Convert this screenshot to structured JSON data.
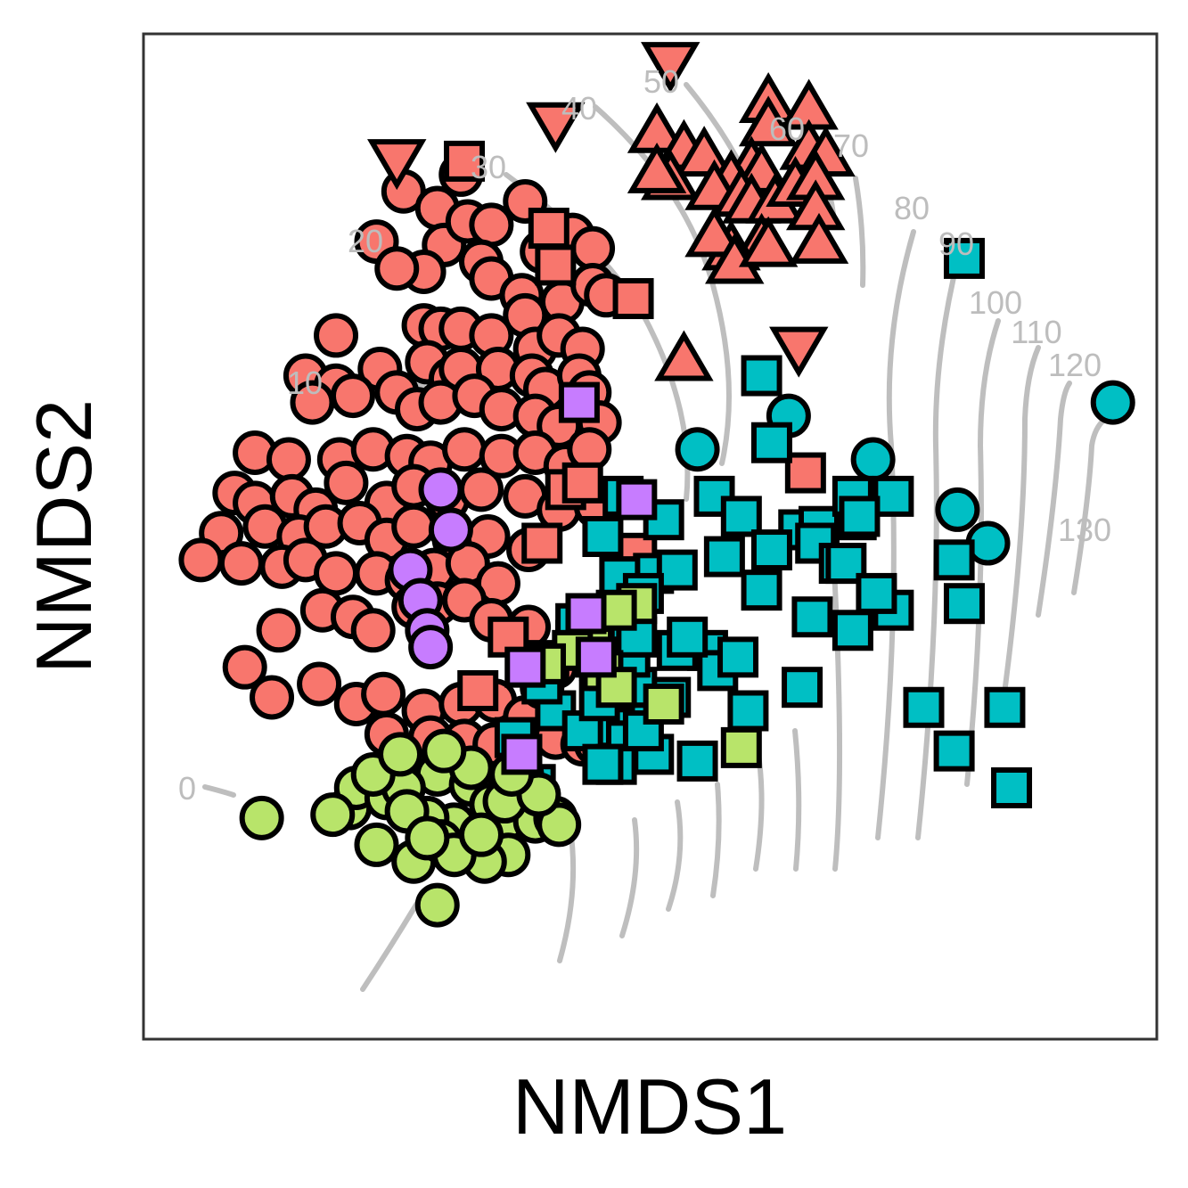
{
  "chart_data": {
    "type": "scatter",
    "title": "",
    "xlabel": "NMDS1",
    "ylabel": "NMDS2",
    "xlim": [
      -1.5,
      1.5
    ],
    "ylim": [
      -1.5,
      1.5
    ],
    "grid": false,
    "legend": "none",
    "overlay": "ordisurf contour lines",
    "contour_levels": [
      0,
      10,
      20,
      30,
      40,
      50,
      60,
      70,
      80,
      90,
      100,
      110,
      120,
      130
    ],
    "colors": {
      "red": "#F8766D",
      "cyan": "#00BFC4",
      "green": "#B8E46A",
      "purple": "#C77CFF",
      "contour": "#BEBEBE",
      "outline": "#000000"
    },
    "series": [
      {
        "color": "red",
        "shape": "circle",
        "points": [
          [
            -0.73,
            1.03
          ],
          [
            -0.56,
            1.08
          ],
          [
            -0.81,
            0.88
          ],
          [
            -0.63,
            0.98
          ],
          [
            -0.37,
            1.0
          ],
          [
            -0.61,
            0.87
          ],
          [
            -0.54,
            0.94
          ],
          [
            -0.47,
            0.93
          ],
          [
            -0.32,
            0.85
          ],
          [
            -0.23,
            0.9
          ],
          [
            -0.17,
            0.86
          ],
          [
            -0.67,
            0.79
          ],
          [
            -0.75,
            0.8
          ],
          [
            -0.5,
            0.82
          ],
          [
            -0.47,
            0.77
          ],
          [
            -0.38,
            0.72
          ],
          [
            -0.26,
            0.7
          ],
          [
            -0.17,
            0.75
          ],
          [
            -0.13,
            0.72
          ],
          [
            -0.93,
            0.6
          ],
          [
            -0.67,
            0.63
          ],
          [
            -0.62,
            0.62
          ],
          [
            -0.56,
            0.62
          ],
          [
            -0.47,
            0.6
          ],
          [
            -0.37,
            0.66
          ],
          [
            -0.34,
            0.56
          ],
          [
            -0.27,
            0.6
          ],
          [
            -0.2,
            0.56
          ],
          [
            -1.02,
            0.48
          ],
          [
            -0.93,
            0.45
          ],
          [
            -0.8,
            0.5
          ],
          [
            -0.66,
            0.52
          ],
          [
            -0.59,
            0.47
          ],
          [
            -0.56,
            0.5
          ],
          [
            -0.45,
            0.5
          ],
          [
            -0.35,
            0.48
          ],
          [
            -0.31,
            0.44
          ],
          [
            -0.21,
            0.48
          ],
          [
            -0.18,
            0.43
          ],
          [
            -1.0,
            0.4
          ],
          [
            -0.88,
            0.42
          ],
          [
            -0.75,
            0.43
          ],
          [
            -0.69,
            0.38
          ],
          [
            -0.62,
            0.4
          ],
          [
            -0.52,
            0.42
          ],
          [
            -0.44,
            0.38
          ],
          [
            -0.34,
            0.36
          ],
          [
            -0.27,
            0.33
          ],
          [
            -0.15,
            0.34
          ],
          [
            -1.17,
            0.25
          ],
          [
            -1.07,
            0.23
          ],
          [
            -0.92,
            0.23
          ],
          [
            -0.82,
            0.26
          ],
          [
            -0.72,
            0.24
          ],
          [
            -0.65,
            0.22
          ],
          [
            -0.55,
            0.26
          ],
          [
            -0.44,
            0.24
          ],
          [
            -0.34,
            0.25
          ],
          [
            -0.25,
            0.21
          ],
          [
            -0.18,
            0.26
          ],
          [
            -1.23,
            0.13
          ],
          [
            -1.17,
            0.1
          ],
          [
            -1.06,
            0.12
          ],
          [
            -0.99,
            0.08
          ],
          [
            -0.9,
            0.16
          ],
          [
            -0.78,
            0.1
          ],
          [
            -0.7,
            0.15
          ],
          [
            -0.6,
            0.11
          ],
          [
            -0.5,
            0.14
          ],
          [
            -0.37,
            0.12
          ],
          [
            -0.27,
            0.08
          ],
          [
            -0.16,
            0.09
          ],
          [
            -1.27,
            0.01
          ],
          [
            -1.14,
            0.03
          ],
          [
            -1.04,
            -0.0
          ],
          [
            -0.96,
            0.03
          ],
          [
            -0.86,
            0.04
          ],
          [
            -0.78,
            -0.01
          ],
          [
            -0.7,
            0.03
          ],
          [
            -0.58,
            -0.01
          ],
          [
            -0.48,
            0.0
          ],
          [
            -0.36,
            -0.04
          ],
          [
            -1.33,
            -0.07
          ],
          [
            -1.21,
            -0.08
          ],
          [
            -1.09,
            -0.09
          ],
          [
            -1.02,
            -0.07
          ],
          [
            -0.93,
            -0.11
          ],
          [
            -0.81,
            -0.11
          ],
          [
            -0.72,
            -0.13
          ],
          [
            -0.64,
            -0.1
          ],
          [
            -0.54,
            -0.08
          ],
          [
            -0.45,
            -0.14
          ],
          [
            -1.1,
            -0.28
          ],
          [
            -0.97,
            -0.22
          ],
          [
            -0.88,
            -0.24
          ],
          [
            -0.82,
            -0.28
          ],
          [
            -0.7,
            -0.21
          ],
          [
            -0.63,
            -0.2
          ],
          [
            -0.55,
            -0.19
          ],
          [
            -0.47,
            -0.25
          ],
          [
            -1.12,
            -0.48
          ],
          [
            -0.98,
            -0.44
          ],
          [
            -0.87,
            -0.5
          ],
          [
            -0.79,
            -0.47
          ],
          [
            -0.67,
            -0.52
          ],
          [
            -0.56,
            -0.5
          ],
          [
            -0.46,
            -0.49
          ],
          [
            -0.37,
            -0.54
          ],
          [
            -0.32,
            -0.45
          ],
          [
            -0.28,
            -0.39
          ],
          [
            -0.12,
            -0.48
          ],
          [
            -0.78,
            -0.59
          ],
          [
            -0.65,
            -0.6
          ],
          [
            -0.55,
            -0.61
          ],
          [
            -0.46,
            -0.62
          ],
          [
            -0.28,
            -0.6
          ],
          [
            -1.2,
            -0.39
          ],
          [
            -0.36,
            -0.27
          ],
          [
            -0.2,
            -0.62
          ],
          [
            -0.16,
            -0.62
          ]
        ]
      },
      {
        "color": "red",
        "shape": "square",
        "points": [
          [
            -0.55,
            1.12
          ],
          [
            -0.3,
            0.92
          ],
          [
            -0.28,
            0.81
          ],
          [
            -0.05,
            0.71
          ],
          [
            0.46,
            0.19
          ],
          [
            -0.25,
            0.14
          ],
          [
            -0.2,
            0.16
          ],
          [
            -0.32,
            -0.02
          ],
          [
            -0.04,
            -0.05
          ],
          [
            -0.22,
            -0.31
          ],
          [
            -0.42,
            -0.3
          ],
          [
            -0.51,
            -0.46
          ]
        ]
      },
      {
        "color": "red",
        "shape": "triangle-up",
        "points": [
          [
            0.02,
            1.2
          ],
          [
            0.1,
            1.15
          ],
          [
            0.16,
            1.13
          ],
          [
            0.06,
            1.06
          ],
          [
            0.02,
            1.08
          ],
          [
            0.35,
            1.29
          ],
          [
            0.47,
            1.27
          ],
          [
            0.35,
            1.22
          ],
          [
            0.47,
            1.15
          ],
          [
            0.52,
            1.13
          ],
          [
            0.3,
            1.1
          ],
          [
            0.33,
            1.08
          ],
          [
            0.24,
            1.06
          ],
          [
            0.19,
            1.03
          ],
          [
            0.27,
            1.01
          ],
          [
            0.3,
            0.99
          ],
          [
            0.37,
            0.99
          ],
          [
            0.43,
            1.04
          ],
          [
            0.49,
            1.06
          ],
          [
            0.49,
            0.97
          ],
          [
            0.5,
            0.87
          ],
          [
            0.33,
            0.87
          ],
          [
            0.24,
            0.85
          ],
          [
            0.19,
            0.89
          ],
          [
            0.25,
            0.81
          ],
          [
            0.35,
            0.86
          ],
          [
            0.1,
            0.52
          ]
        ]
      },
      {
        "color": "red",
        "shape": "triangle-down",
        "points": [
          [
            -0.75,
            1.13
          ],
          [
            -0.28,
            1.24
          ],
          [
            0.06,
            1.42
          ],
          [
            0.44,
            0.57
          ]
        ]
      },
      {
        "color": "cyan",
        "shape": "circle",
        "points": [
          [
            0.41,
            0.36
          ],
          [
            0.14,
            0.26
          ],
          [
            0.66,
            0.23
          ],
          [
            0.91,
            0.08
          ],
          [
            1.0,
            -0.02
          ],
          [
            1.37,
            0.4
          ]
        ]
      },
      {
        "color": "cyan",
        "shape": "square",
        "points": [
          [
            0.93,
            0.83
          ],
          [
            0.33,
            0.48
          ],
          [
            0.36,
            0.28
          ],
          [
            -0.08,
            0.12
          ],
          [
            0.19,
            0.12
          ],
          [
            0.27,
            0.06
          ],
          [
            0.04,
            0.05
          ],
          [
            0.44,
            0.02
          ],
          [
            0.5,
            0.03
          ],
          [
            0.61,
            0.05
          ],
          [
            -0.14,
            -0.0
          ],
          [
            0.01,
            -0.11
          ],
          [
            0.08,
            -0.1
          ],
          [
            0.49,
            -0.02
          ],
          [
            0.56,
            -0.08
          ],
          [
            0.9,
            -0.07
          ],
          [
            -0.09,
            -0.12
          ],
          [
            -0.02,
            -0.17
          ],
          [
            -0.22,
            -0.26
          ],
          [
            0.33,
            -0.16
          ],
          [
            0.72,
            -0.22
          ],
          [
            0.93,
            -0.2
          ],
          [
            0.17,
            -0.34
          ],
          [
            0.2,
            -0.4
          ],
          [
            0.45,
            -0.45
          ],
          [
            -0.08,
            -0.44
          ],
          [
            0.06,
            -0.48
          ],
          [
            0.29,
            -0.52
          ],
          [
            -0.28,
            -0.52
          ],
          [
            0.81,
            -0.51
          ],
          [
            0.9,
            -0.64
          ],
          [
            1.07,
            -0.75
          ],
          [
            0.14,
            -0.67
          ],
          [
            1.05,
            -0.51
          ],
          [
            -0.06,
            -0.26
          ],
          [
            0.0,
            -0.5
          ],
          [
            -0.3,
            -0.37
          ],
          [
            -0.11,
            -0.57
          ],
          [
            0.08,
            -0.34
          ],
          [
            0.11,
            -0.3
          ],
          [
            -0.07,
            -0.61
          ],
          [
            0.01,
            -0.65
          ],
          [
            -0.2,
            -0.58
          ],
          [
            -0.1,
            -0.68
          ],
          [
            -0.02,
            -0.58
          ],
          [
            -0.34,
            -0.74
          ],
          [
            0.72,
            0.12
          ],
          [
            0.6,
            0.12
          ],
          [
            0.58,
            -0.08
          ],
          [
            -0.4,
            -0.6
          ],
          [
            -0.15,
            -0.49
          ],
          [
            -0.04,
            -0.45
          ],
          [
            -0.12,
            -0.4
          ],
          [
            -0.06,
            -0.36
          ],
          [
            0.6,
            -0.28
          ],
          [
            0.26,
            -0.36
          ],
          [
            -0.32,
            -0.44
          ],
          [
            0.48,
            -0.24
          ],
          [
            0.36,
            -0.04
          ],
          [
            0.67,
            -0.17
          ],
          [
            0.62,
            0.06
          ],
          [
            -0.14,
            -0.68
          ],
          [
            0.22,
            -0.06
          ],
          [
            -0.04,
            -0.3
          ]
        ]
      },
      {
        "color": "green",
        "shape": "circle",
        "points": [
          [
            -1.15,
            -0.84
          ],
          [
            -0.89,
            -0.81
          ],
          [
            -0.87,
            -0.75
          ],
          [
            -0.78,
            -0.78
          ],
          [
            -0.63,
            -0.71
          ],
          [
            -0.58,
            -0.86
          ],
          [
            -0.53,
            -0.74
          ],
          [
            -0.47,
            -0.8
          ],
          [
            -0.42,
            -0.84
          ],
          [
            -0.38,
            -0.71
          ],
          [
            -0.34,
            -0.85
          ],
          [
            -0.42,
            -0.95
          ],
          [
            -0.49,
            -0.97
          ],
          [
            -0.7,
            -0.97
          ],
          [
            -0.81,
            -0.92
          ],
          [
            -0.94,
            -0.83
          ],
          [
            -0.73,
            -0.75
          ],
          [
            -0.66,
            -0.84
          ],
          [
            -0.62,
            -0.91
          ],
          [
            -0.58,
            -0.95
          ],
          [
            -0.5,
            -0.89
          ],
          [
            -0.43,
            -0.79
          ],
          [
            -0.28,
            -0.84
          ],
          [
            -0.27,
            -0.86
          ],
          [
            -0.33,
            -0.77
          ],
          [
            -0.41,
            -0.71
          ],
          [
            -0.53,
            -0.69
          ],
          [
            -0.63,
            -1.1
          ],
          [
            -0.82,
            -0.71
          ],
          [
            -0.72,
            -0.82
          ],
          [
            -0.66,
            -0.9
          ],
          [
            -0.74,
            -0.65
          ],
          [
            -0.61,
            -0.64
          ]
        ]
      },
      {
        "color": "green",
        "shape": "square",
        "points": [
          [
            -0.17,
            -0.33
          ],
          [
            -0.15,
            -0.37
          ],
          [
            -0.23,
            -0.34
          ],
          [
            -0.31,
            -0.38
          ],
          [
            -0.04,
            -0.2
          ],
          [
            -0.1,
            -0.22
          ],
          [
            0.04,
            -0.5
          ],
          [
            0.27,
            -0.63
          ],
          [
            -0.14,
            -0.4
          ],
          [
            -0.1,
            -0.45
          ]
        ]
      },
      {
        "color": "purple",
        "shape": "circle",
        "points": [
          [
            -0.62,
            0.14
          ],
          [
            -0.59,
            0.02
          ],
          [
            -0.71,
            -0.1
          ],
          [
            -0.68,
            -0.19
          ],
          [
            -0.66,
            -0.28
          ],
          [
            -0.65,
            -0.33
          ]
        ]
      },
      {
        "color": "purple",
        "shape": "square",
        "points": [
          [
            -0.21,
            0.4
          ],
          [
            -0.04,
            0.11
          ],
          [
            -0.19,
            -0.23
          ],
          [
            -0.16,
            -0.36
          ],
          [
            -0.37,
            -0.39
          ],
          [
            -0.38,
            -0.65
          ]
        ]
      }
    ]
  }
}
